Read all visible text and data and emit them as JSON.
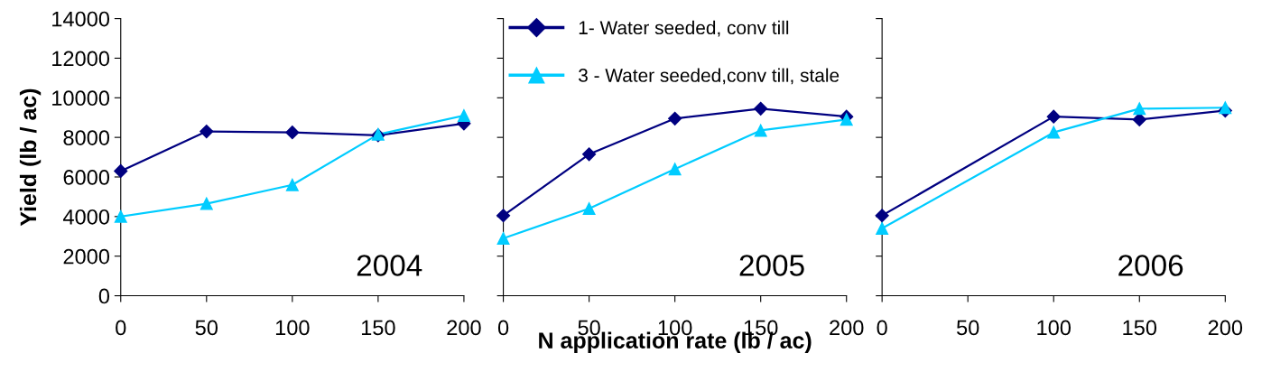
{
  "chart_data": [
    {
      "type": "line",
      "ylabel": "Yield (lb / ac)",
      "xlim": [
        0,
        200
      ],
      "xticks": [
        0,
        50,
        100,
        150,
        200
      ],
      "ylim": [
        0,
        14000
      ],
      "yticks": [
        0,
        2000,
        4000,
        6000,
        8000,
        10000,
        12000,
        14000
      ],
      "annotations": [
        "2004"
      ],
      "legend": false,
      "grid": false,
      "series": [
        {
          "color": "#000080",
          "marker": "diamond",
          "x": [
            0,
            50,
            100,
            150,
            200
          ],
          "values": [
            6300,
            8300,
            8250,
            8100,
            8700
          ]
        },
        {
          "color": "#00ccff",
          "marker": "triangle",
          "x": [
            0,
            50,
            100,
            150,
            200
          ],
          "values": [
            4000,
            4650,
            5600,
            8150,
            9100
          ]
        }
      ]
    },
    {
      "type": "line",
      "xlabel": "N application rate (lb / ac)",
      "xlim": [
        0,
        200
      ],
      "xticks": [
        0,
        50,
        100,
        150,
        200
      ],
      "ylim": [
        0,
        14000
      ],
      "yticks": [
        0,
        2000,
        4000,
        6000,
        8000,
        10000,
        12000,
        14000
      ],
      "tick_labels": "x",
      "annotations": [
        "2005"
      ],
      "legend": "top",
      "grid": false,
      "series": [
        {
          "name": "1- Water seeded, conv till",
          "color": "#000080",
          "marker": "diamond",
          "x": [
            0,
            50,
            100,
            150,
            200
          ],
          "values": [
            4050,
            7150,
            8950,
            9450,
            9050
          ]
        },
        {
          "name": "3 - Water seeded,conv till, stale",
          "color": "#00ccff",
          "marker": "triangle",
          "x": [
            0,
            50,
            100,
            150,
            200
          ],
          "values": [
            2900,
            4400,
            6400,
            8350,
            8900
          ]
        }
      ]
    },
    {
      "type": "line",
      "xlim": [
        0,
        200
      ],
      "xticks": [
        0,
        50,
        100,
        150,
        200
      ],
      "ylim": [
        0,
        14000
      ],
      "yticks": [
        0,
        2000,
        4000,
        6000,
        8000,
        10000,
        12000,
        14000
      ],
      "tick_labels": "x",
      "annotations": [
        "2006"
      ],
      "legend": false,
      "grid": false,
      "series": [
        {
          "color": "#000080",
          "marker": "diamond",
          "x": [
            0,
            100,
            150,
            200
          ],
          "values": [
            4050,
            9050,
            8900,
            9350
          ]
        },
        {
          "color": "#00ccff",
          "marker": "triangle",
          "x": [
            0,
            100,
            150,
            200
          ],
          "values": [
            3400,
            8250,
            9450,
            9500
          ]
        }
      ]
    }
  ]
}
